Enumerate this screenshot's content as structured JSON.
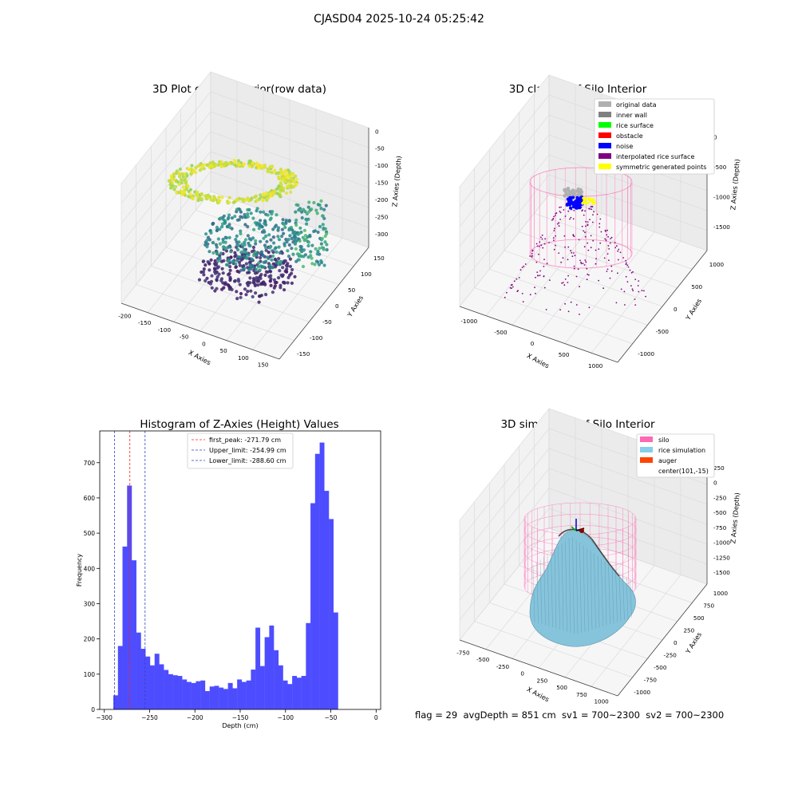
{
  "suptitle": "CJASD04 2025-10-24 05:25:42",
  "status_line": "flag = 29  avgDepth = 851 cm  sv1 = 700~2300  sv2 = 700~2300",
  "colors": {
    "hist_bar": "#4d4dff",
    "first_peak": "#ff2020",
    "limit": "#3040c0",
    "silo": "#ff69b4",
    "rice": "#87ceeb",
    "auger": "#ff4500"
  },
  "chart_data": [
    {
      "type": "scatter",
      "title": "3D Plot of Silo Interior(row data)",
      "xlabel": "X Axies",
      "ylabel": "Y Axies",
      "zlabel": "Z Axies (Depth)",
      "x_ticks": [
        "-200",
        "-150",
        "-100",
        "-50",
        "0",
        "50",
        "100",
        "150"
      ],
      "y_ticks": [
        "-150",
        "-100",
        "-50",
        "0",
        "50",
        "100",
        "150"
      ],
      "z_ticks": [
        "0",
        "-50",
        "-100",
        "-150",
        "-200",
        "-250",
        "-300"
      ],
      "xlim": [
        -220,
        160
      ],
      "ylim": [
        -160,
        160
      ],
      "zlim": [
        -300,
        0
      ],
      "colormap": "viridis",
      "grid": true
    },
    {
      "type": "scatter",
      "title": "3D classify of Silo Interior",
      "xlabel": "X Axies",
      "ylabel": "Y Axies",
      "zlabel": "Z Axies (Depth)",
      "x_ticks": [
        "-1000",
        "-500",
        "0",
        "500",
        "1000"
      ],
      "y_ticks": [
        "-1000",
        "-500",
        "0",
        "500",
        "1000"
      ],
      "z_ticks": [
        "0",
        "-500",
        "-1000",
        "-1500"
      ],
      "xlim": [
        -1100,
        1100
      ],
      "ylim": [
        -1100,
        1100
      ],
      "zlim": [
        -1700,
        0
      ],
      "legend": [
        {
          "label": "original data",
          "color": "#b0b0b0"
        },
        {
          "label": "inner wall",
          "color": "#808080"
        },
        {
          "label": "rice surface",
          "color": "#00ff00"
        },
        {
          "label": "obstacle",
          "color": "#ff0000"
        },
        {
          "label": "noise",
          "color": "#0000ff"
        },
        {
          "label": "interpolated rice surface",
          "color": "#800080"
        },
        {
          "label": "symmetric generated points",
          "color": "#ffff00"
        }
      ],
      "legend_loc": "top-right",
      "grid": true
    },
    {
      "type": "bar",
      "title": "Histogram of Z-Axies (Height) Values",
      "xlabel": "Depth (cm)",
      "ylabel": "Frequency",
      "xlim": [
        -305,
        5
      ],
      "ylim": [
        0,
        790
      ],
      "x_ticks": [
        -300,
        -250,
        -200,
        -150,
        -100,
        -50,
        0
      ],
      "y_ticks": [
        0,
        100,
        200,
        300,
        400,
        500,
        600,
        700
      ],
      "bin_start": -290,
      "bin_width": 5.06,
      "values": [
        40,
        180,
        462,
        635,
        423,
        218,
        172,
        150,
        125,
        158,
        128,
        112,
        100,
        97,
        95,
        85,
        78,
        75,
        80,
        82,
        52,
        65,
        67,
        62,
        58,
        75,
        60,
        85,
        78,
        82,
        113,
        232,
        123,
        205,
        238,
        168,
        125,
        82,
        72,
        95,
        90,
        95,
        245,
        585,
        725,
        757,
        620,
        540,
        275
      ],
      "vlines": [
        {
          "x": -271.79,
          "label": "first_peak: -271.79 cm",
          "color": "#ff2020"
        },
        {
          "x": -254.99,
          "label": "Upper_limit: -254.99 cm",
          "color": "#3040c0"
        },
        {
          "x": -288.6,
          "label": "Lower_limit: -288.60 cm",
          "color": "#3040c0"
        }
      ],
      "legend_loc": "top-center"
    },
    {
      "type": "area",
      "title": "3D simulation of Silo Interior",
      "xlabel": "X Axies",
      "ylabel": "Y Axies",
      "zlabel": "Z Axies (Depth)",
      "x_ticks": [
        "-750",
        "-500",
        "-250",
        "0",
        "250",
        "500",
        "750",
        "1000"
      ],
      "y_ticks": [
        "-1000",
        "-750",
        "-500",
        "-250",
        "0",
        "250",
        "500",
        "750",
        "1000"
      ],
      "z_ticks": [
        "250",
        "0",
        "-250",
        "-500",
        "-750",
        "-1000",
        "-1250",
        "-1500"
      ],
      "legend": [
        {
          "label": "silo",
          "color": "#ff69b4"
        },
        {
          "label": "rice simulation",
          "color": "#87ceeb"
        },
        {
          "label": "auger",
          "color": "#ff4500"
        },
        {
          "label": "center(101,-15)",
          "color": ""
        }
      ],
      "legend_loc": "top-right",
      "grid": true
    }
  ]
}
